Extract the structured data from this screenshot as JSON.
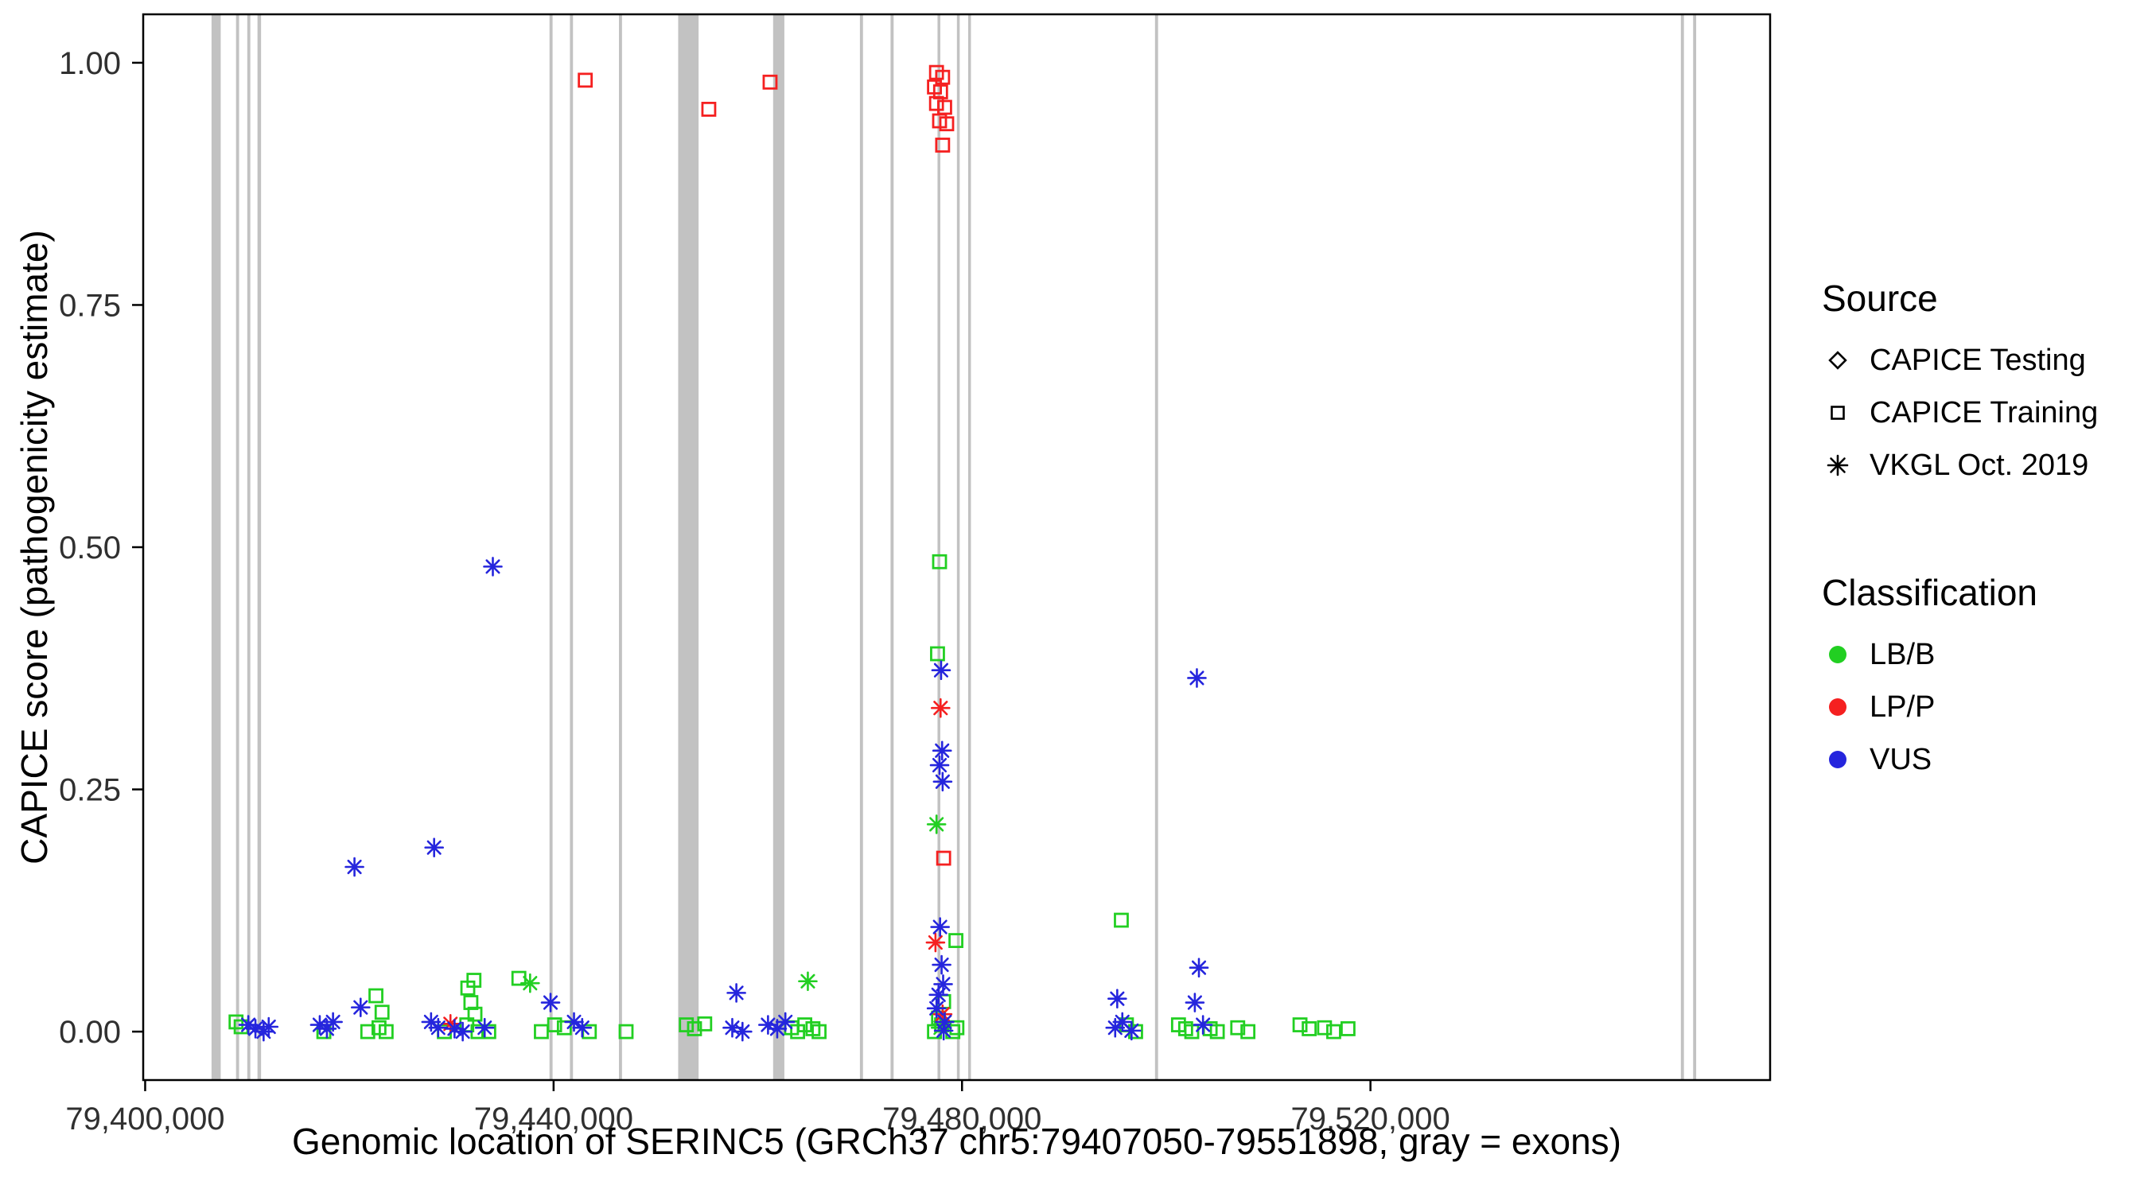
{
  "figure": {
    "background": "#ffffff",
    "border_color": "#000000"
  },
  "colors": {
    "LB/B": "#22cf22",
    "LP/P": "#f52020",
    "VUS": "#2525dd",
    "exon": "#c2c2c2",
    "axis": "#000000",
    "tick_text": "#303030"
  },
  "axes": {
    "x_title": "Genomic location of SERINC5 (GRCh37 chr5:79407050-79551898, gray = exons)",
    "y_title": "CAPICE score (pathogenicity estimate)",
    "xlim": [
      79399808,
      79559140
    ],
    "ylim": [
      -0.05,
      1.05
    ],
    "x_ticks": [
      {
        "value": 79400000,
        "label": "79,400,000"
      },
      {
        "value": 79440000,
        "label": "79,440,000"
      },
      {
        "value": 79480000,
        "label": "79,480,000"
      },
      {
        "value": 79520000,
        "label": "79,520,000"
      }
    ],
    "y_ticks": [
      {
        "value": 0.0,
        "label": "0.00"
      },
      {
        "value": 0.25,
        "label": "0.25"
      },
      {
        "value": 0.5,
        "label": "0.50"
      },
      {
        "value": 0.75,
        "label": "0.75"
      },
      {
        "value": 1.0,
        "label": "1.00"
      }
    ]
  },
  "legend": {
    "source": {
      "title": "Source",
      "items": [
        {
          "label": "CAPICE Testing",
          "shape": "diamond"
        },
        {
          "label": "CAPICE Training",
          "shape": "square"
        },
        {
          "label": "VKGL Oct. 2019",
          "shape": "asterisk"
        }
      ]
    },
    "classification": {
      "title": "Classification",
      "items": [
        {
          "label": "LB/B",
          "color": "#22cf22"
        },
        {
          "label": "LP/P",
          "color": "#f52020"
        },
        {
          "label": "VUS",
          "color": "#2525dd"
        }
      ]
    }
  },
  "chart_data": {
    "type": "scatter",
    "title": "",
    "xlabel": "Genomic location of SERINC5 (GRCh37 chr5:79407050-79551898, gray = exons)",
    "ylabel": "CAPICE score (pathogenicity estimate)",
    "xlim": [
      79399808,
      79559140
    ],
    "ylim": [
      -0.05,
      1.05
    ],
    "grid": false,
    "legend_position": "right",
    "exons": [
      [
        79406500,
        79407400
      ],
      [
        79408900,
        79409200
      ],
      [
        79410000,
        79410300
      ],
      [
        79411000,
        79411350
      ],
      [
        79439600,
        79439900
      ],
      [
        79441600,
        79441900
      ],
      [
        79446400,
        79446700
      ],
      [
        79452200,
        79454200
      ],
      [
        79461500,
        79462600
      ],
      [
        79470000,
        79470300
      ],
      [
        79473000,
        79473300
      ],
      [
        79477600,
        79477850
      ],
      [
        79479500,
        79479750
      ],
      [
        79480600,
        79480850
      ],
      [
        79498900,
        79499200
      ],
      [
        79550400,
        79550700
      ],
      [
        79551600,
        79551898
      ]
    ],
    "series": [
      {
        "classification": "LB/B",
        "source": "CAPICE Training",
        "shape": "square",
        "points": [
          [
            79408900,
            0.01
          ],
          [
            79409400,
            0.005
          ],
          [
            79417500,
            0.0
          ],
          [
            79421800,
            0.0
          ],
          [
            79422600,
            0.037
          ],
          [
            79422900,
            0.004
          ],
          [
            79423200,
            0.02
          ],
          [
            79423600,
            0.0
          ],
          [
            79429300,
            0.0
          ],
          [
            79431500,
            0.007
          ],
          [
            79431600,
            0.045
          ],
          [
            79431900,
            0.03
          ],
          [
            79432200,
            0.053
          ],
          [
            79432300,
            0.018
          ],
          [
            79432600,
            0.0
          ],
          [
            79433650,
            0.0
          ],
          [
            79436600,
            0.055
          ],
          [
            79438800,
            0.0
          ],
          [
            79440100,
            0.007
          ],
          [
            79441050,
            0.004
          ],
          [
            79443500,
            0.0
          ],
          [
            79447100,
            0.0
          ],
          [
            79453000,
            0.007
          ],
          [
            79453800,
            0.003
          ],
          [
            79454800,
            0.008
          ],
          [
            79463300,
            0.004
          ],
          [
            79463900,
            0.0
          ],
          [
            79464600,
            0.007
          ],
          [
            79465400,
            0.003
          ],
          [
            79466000,
            0.0
          ],
          [
            79477300,
            0.0
          ],
          [
            79477600,
            0.39
          ],
          [
            79477700,
            0.014
          ],
          [
            79477800,
            0.485
          ],
          [
            79478000,
            0.007
          ],
          [
            79478200,
            0.031
          ],
          [
            79479100,
            0.0
          ],
          [
            79479400,
            0.094
          ],
          [
            79479500,
            0.004
          ],
          [
            79495600,
            0.115
          ],
          [
            79496100,
            0.007
          ],
          [
            79497000,
            0.0
          ],
          [
            79501200,
            0.007
          ],
          [
            79501900,
            0.003
          ],
          [
            79502500,
            0.0
          ],
          [
            79504300,
            0.003
          ],
          [
            79505000,
            0.0
          ],
          [
            79507000,
            0.004
          ],
          [
            79508000,
            0.0
          ],
          [
            79513100,
            0.007
          ],
          [
            79514000,
            0.003
          ],
          [
            79515500,
            0.004
          ],
          [
            79516400,
            0.0
          ],
          [
            79517800,
            0.003
          ]
        ]
      },
      {
        "classification": "LB/B",
        "source": "VKGL Oct. 2019",
        "shape": "asterisk",
        "points": [
          [
            79437700,
            0.05
          ],
          [
            79464900,
            0.052
          ],
          [
            79477500,
            0.214
          ],
          [
            79477900,
            0.004
          ]
        ]
      },
      {
        "classification": "LP/P",
        "source": "CAPICE Training",
        "shape": "square",
        "points": [
          [
            79443100,
            0.982
          ],
          [
            79455200,
            0.952
          ],
          [
            79461200,
            0.98
          ],
          [
            79477300,
            0.975
          ],
          [
            79477500,
            0.99
          ],
          [
            79477500,
            0.958
          ],
          [
            79477800,
            0.94
          ],
          [
            79477900,
            0.97
          ],
          [
            79478100,
            0.985
          ],
          [
            79478100,
            0.915
          ],
          [
            79478200,
            0.179
          ],
          [
            79478300,
            0.954
          ],
          [
            79478500,
            0.937
          ]
        ]
      },
      {
        "classification": "LP/P",
        "source": "VKGL Oct. 2019",
        "shape": "asterisk",
        "points": [
          [
            79429900,
            0.008
          ],
          [
            79477400,
            0.092
          ],
          [
            79477900,
            0.334
          ],
          [
            79478100,
            0.018
          ]
        ]
      },
      {
        "classification": "VUS",
        "source": "VKGL Oct. 2019",
        "shape": "asterisk",
        "points": [
          [
            79410100,
            0.007
          ],
          [
            79410800,
            0.003
          ],
          [
            79411600,
            0.0
          ],
          [
            79412100,
            0.005
          ],
          [
            79417100,
            0.007
          ],
          [
            79417800,
            0.003
          ],
          [
            79418400,
            0.01
          ],
          [
            79420500,
            0.17
          ],
          [
            79421100,
            0.025
          ],
          [
            79428000,
            0.01
          ],
          [
            79428300,
            0.19
          ],
          [
            79428700,
            0.004
          ],
          [
            79430300,
            0.003
          ],
          [
            79431100,
            0.0
          ],
          [
            79433250,
            0.004
          ],
          [
            79434050,
            0.48
          ],
          [
            79439700,
            0.03
          ],
          [
            79442000,
            0.01
          ],
          [
            79442800,
            0.004
          ],
          [
            79457500,
            0.004
          ],
          [
            79457900,
            0.04
          ],
          [
            79458500,
            0.0
          ],
          [
            79461000,
            0.007
          ],
          [
            79461900,
            0.003
          ],
          [
            79462700,
            0.01
          ],
          [
            79477500,
            0.024
          ],
          [
            79477700,
            0.038
          ],
          [
            79477800,
            0.275
          ],
          [
            79477850,
            0.108
          ],
          [
            79477950,
            0.373
          ],
          [
            79478000,
            0.069
          ],
          [
            79478050,
            0.29
          ],
          [
            79478100,
            0.258
          ],
          [
            79478150,
            0.049
          ],
          [
            79478200,
            0.001
          ],
          [
            79478300,
            0.01
          ],
          [
            79495000,
            0.004
          ],
          [
            79495200,
            0.034
          ],
          [
            79495700,
            0.01
          ],
          [
            79496600,
            0.001
          ],
          [
            79502800,
            0.03
          ],
          [
            79503000,
            0.365
          ],
          [
            79503200,
            0.066
          ],
          [
            79503600,
            0.007
          ]
        ]
      }
    ]
  }
}
